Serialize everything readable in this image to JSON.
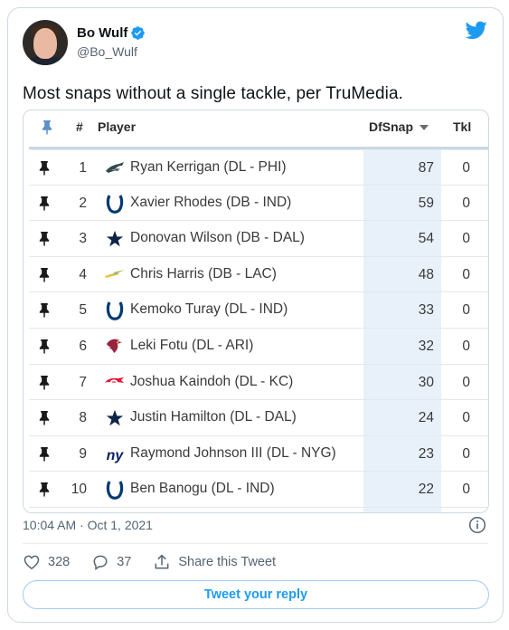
{
  "author": {
    "display_name": "Bo Wulf",
    "handle": "@Bo_Wulf",
    "verified": true
  },
  "tweet": {
    "text": "Most snaps without a single tackle, per TruMedia."
  },
  "table": {
    "columns": {
      "pin": "pin-icon",
      "rank": "#",
      "player": "Player",
      "dfsnap": "DfSnap",
      "tkl": "Tkl"
    },
    "sort_column": "DfSnap",
    "rows": [
      {
        "rank": "1",
        "team_icon": "eagles-logo",
        "player": "Ryan Kerrigan (DL - PHI)",
        "dfsnap": "87",
        "tkl": "0"
      },
      {
        "rank": "2",
        "team_icon": "colts-horseshoe-logo",
        "player": "Xavier Rhodes (DB - IND)",
        "dfsnap": "59",
        "tkl": "0"
      },
      {
        "rank": "3",
        "team_icon": "cowboys-star-logo",
        "player": "Donovan Wilson (DB - DAL)",
        "dfsnap": "54",
        "tkl": "0"
      },
      {
        "rank": "4",
        "team_icon": "chargers-bolt-logo",
        "player": "Chris Harris (DB - LAC)",
        "dfsnap": "48",
        "tkl": "0"
      },
      {
        "rank": "5",
        "team_icon": "colts-horseshoe-logo",
        "player": "Kemoko Turay (DL - IND)",
        "dfsnap": "33",
        "tkl": "0"
      },
      {
        "rank": "6",
        "team_icon": "cardinals-logo",
        "player": "Leki Fotu (DL - ARI)",
        "dfsnap": "32",
        "tkl": "0"
      },
      {
        "rank": "7",
        "team_icon": "chiefs-logo",
        "player": "Joshua Kaindoh (DL - KC)",
        "dfsnap": "30",
        "tkl": "0"
      },
      {
        "rank": "8",
        "team_icon": "cowboys-star-logo",
        "player": "Justin Hamilton (DL - DAL)",
        "dfsnap": "24",
        "tkl": "0"
      },
      {
        "rank": "9",
        "team_icon": "giants-ny-logo",
        "player": "Raymond Johnson III (DL - NYG)",
        "dfsnap": "23",
        "tkl": "0"
      },
      {
        "rank": "10",
        "team_icon": "colts-horseshoe-logo",
        "player": "Ben Banogu (DL - IND)",
        "dfsnap": "22",
        "tkl": "0"
      }
    ]
  },
  "meta": {
    "timestamp": "10:04 AM · Oct 1, 2021"
  },
  "actions": {
    "likes": "328",
    "replies": "37",
    "share_label": "Share this Tweet"
  },
  "reply_button": {
    "label": "Tweet your reply"
  },
  "colors": {
    "twitter_blue": "#1d9bf0",
    "dfsnap_highlight": "#e8f1fa",
    "header_pin": "#5b8fc7"
  }
}
